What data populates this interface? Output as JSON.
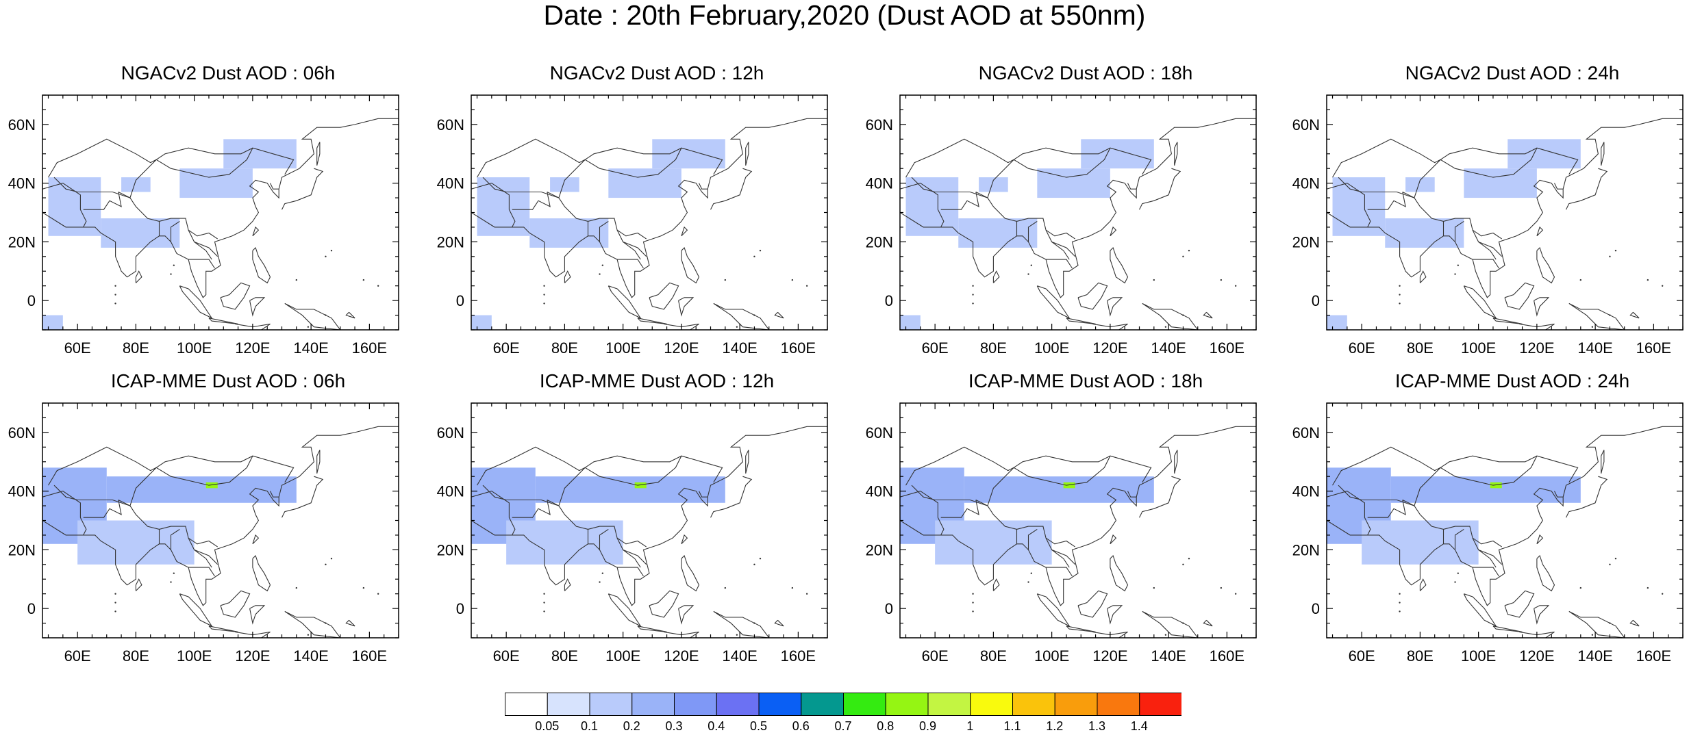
{
  "title": "Date : 20th February,2020 (Dust AOD at 550nm)",
  "panels": [
    {
      "model": "NGACv2",
      "hour": "06h",
      "title": "NGACv2 Dust AOD : 06h"
    },
    {
      "model": "NGACv2",
      "hour": "12h",
      "title": "NGACv2 Dust AOD : 12h"
    },
    {
      "model": "NGACv2",
      "hour": "18h",
      "title": "NGACv2 Dust AOD : 18h"
    },
    {
      "model": "NGACv2",
      "hour": "24h",
      "title": "NGACv2 Dust AOD : 24h"
    },
    {
      "model": "ICAP-MME",
      "hour": "06h",
      "title": "ICAP-MME Dust AOD : 06h"
    },
    {
      "model": "ICAP-MME",
      "hour": "12h",
      "title": "ICAP-MME Dust AOD : 12h"
    },
    {
      "model": "ICAP-MME",
      "hour": "18h",
      "title": "ICAP-MME Dust AOD : 18h"
    },
    {
      "model": "ICAP-MME",
      "hour": "24h",
      "title": "ICAP-MME Dust AOD : 24h"
    }
  ],
  "map": {
    "lon_range": [
      48,
      170
    ],
    "lat_range": [
      -10,
      70
    ],
    "lon_ticks": [
      60,
      80,
      100,
      120,
      140,
      160
    ],
    "lon_tick_labels": [
      "60E",
      "80E",
      "100E",
      "120E",
      "140E",
      "160E"
    ],
    "lat_ticks": [
      0,
      20,
      40,
      60
    ],
    "lat_tick_labels": [
      "0",
      "20N",
      "40N",
      "60N"
    ]
  },
  "colorbar": {
    "colors": [
      "#ffffff",
      "#d7e3fd",
      "#b9cbfb",
      "#9ab3f8",
      "#7f98f6",
      "#6b71f3",
      "#0a5ff4",
      "#04988f",
      "#34eb11",
      "#95f513",
      "#c3f542",
      "#f9fa0d",
      "#fac30b",
      "#f99d0c",
      "#f9780e",
      "#f9210e"
    ],
    "labels": [
      "0.05",
      "0.1",
      "0.2",
      "0.3",
      "0.4",
      "0.5",
      "0.6",
      "0.7",
      "0.8",
      "0.9",
      "1",
      "1.1",
      "1.2",
      "1.3",
      "1.4"
    ]
  },
  "chart_data": {
    "type": "heatmap",
    "variable": "Dust AOD at 550nm",
    "date": "20th February,2020",
    "x_axis": "longitude",
    "y_axis": "latitude",
    "xlim": [
      48,
      170
    ],
    "ylim": [
      -10,
      70
    ],
    "color_levels": [
      0.05,
      0.1,
      0.2,
      0.3,
      0.4,
      0.5,
      0.6,
      0.7,
      0.8,
      0.9,
      1,
      1.1,
      1.2,
      1.3,
      1.4
    ],
    "dust_fields": {
      "NGACv2": [
        {
          "lon": [
            50,
            68
          ],
          "lat": [
            22,
            42
          ],
          "aod": 0.15
        },
        {
          "lon": [
            68,
            95
          ],
          "lat": [
            18,
            28
          ],
          "aod": 0.1
        },
        {
          "lon": [
            75,
            85
          ],
          "lat": [
            37,
            42
          ],
          "aod": 0.15
        },
        {
          "lon": [
            95,
            120
          ],
          "lat": [
            35,
            45
          ],
          "aod": 0.15
        },
        {
          "lon": [
            48,
            55
          ],
          "lat": [
            -10,
            -5
          ],
          "aod": 0.1
        },
        {
          "lon": [
            110,
            135
          ],
          "lat": [
            45,
            55
          ],
          "aod": 0.1
        }
      ],
      "ICAP-MME": [
        {
          "lon": [
            48,
            70
          ],
          "lat": [
            22,
            48
          ],
          "aod": 0.25
        },
        {
          "lon": [
            70,
            135
          ],
          "lat": [
            36,
            45
          ],
          "aod": 0.2
        },
        {
          "lon": [
            60,
            100
          ],
          "lat": [
            15,
            30
          ],
          "aod": 0.15
        },
        {
          "lon": [
            104,
            108
          ],
          "lat": [
            41,
            43
          ],
          "aod": 0.85
        }
      ]
    }
  }
}
